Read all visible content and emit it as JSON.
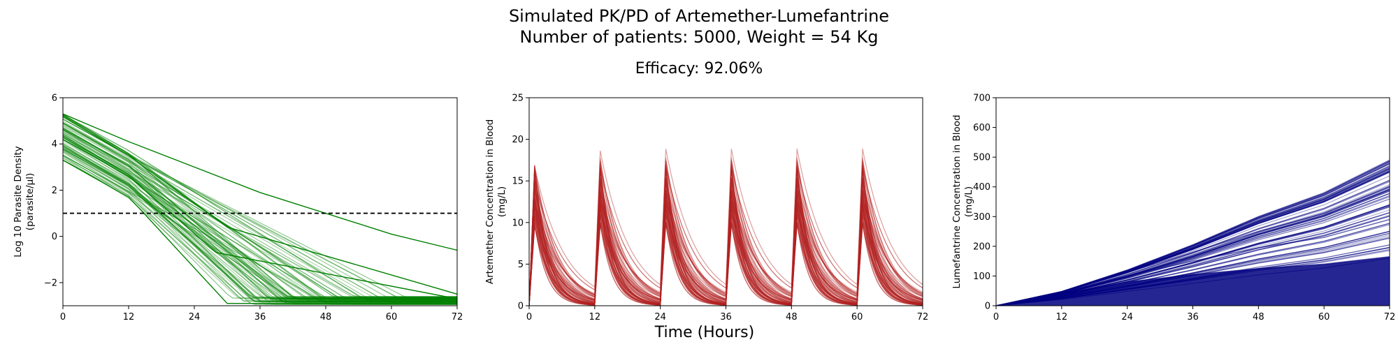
{
  "figure": {
    "title_line1": "Simulated PK/PD of Artemether-Lumefantrine",
    "title_line2": "Number of patients: 5000, Weight = 54 Kg",
    "efficacy_label": "Efficacy: 92.06%",
    "xlabel": "Time (Hours)"
  },
  "chart_data": [
    {
      "type": "line",
      "ylabel_line1": "Log 10 Parasite Density",
      "ylabel_line2": "(parasite/µl)",
      "xlim": [
        0,
        72
      ],
      "ylim": [
        -3,
        6
      ],
      "xticks": [
        0,
        12,
        24,
        36,
        48,
        60,
        72
      ],
      "yticks": [
        -2,
        0,
        2,
        4,
        6
      ],
      "color": "#008000",
      "threshold": 1,
      "series": [
        {
          "x": [
            0,
            12,
            14,
            30,
            72
          ],
          "values": [
            3.3,
            1.7,
            1.2,
            -2.9,
            -2.9
          ]
        },
        {
          "x": [
            0,
            12,
            28,
            72
          ],
          "values": [
            4.2,
            2.6,
            -0.7,
            -2.7
          ]
        },
        {
          "x": [
            0,
            12,
            30,
            72
          ],
          "values": [
            5.2,
            3.5,
            0.4,
            -2.5
          ]
        },
        {
          "x": [
            0,
            12,
            36,
            60,
            72
          ],
          "values": [
            5.3,
            4.1,
            1.9,
            0.1,
            -0.6
          ]
        }
      ]
    },
    {
      "type": "line",
      "ylabel_line1": "Artemether Concentration in Blood",
      "ylabel_line2": "(mg/L)",
      "xlim": [
        0,
        72
      ],
      "ylim": [
        0,
        25
      ],
      "xticks": [
        0,
        12,
        24,
        36,
        48,
        60,
        72
      ],
      "yticks": [
        0,
        5,
        10,
        15,
        20,
        25
      ],
      "color": "#b22222",
      "dose_times": [
        0,
        12,
        24,
        36,
        48,
        60
      ],
      "peak": 17.2,
      "peak_delay_hours": 1
    },
    {
      "type": "line",
      "ylabel_line1": "Lumefantrine Concentration in Blood",
      "ylabel_line2": "(mg/L)",
      "xlim": [
        0,
        72
      ],
      "ylim": [
        0,
        700
      ],
      "xticks": [
        0,
        12,
        24,
        36,
        48,
        60,
        72
      ],
      "yticks": [
        0,
        100,
        200,
        300,
        400,
        500,
        600,
        700
      ],
      "color": "#000080",
      "series": [
        {
          "x": [
            0,
            12,
            24,
            36,
            48,
            60,
            72
          ],
          "values": [
            0,
            48,
            120,
            205,
            300,
            380,
            490
          ]
        },
        {
          "x": [
            0,
            12,
            24,
            36,
            48,
            60,
            72
          ],
          "values": [
            0,
            46,
            112,
            180,
            250,
            310,
            400
          ]
        },
        {
          "x": [
            0,
            12,
            24,
            36,
            48,
            60,
            72
          ],
          "values": [
            0,
            44,
            100,
            150,
            195,
            230,
            290
          ]
        },
        {
          "x": [
            0,
            12,
            24,
            36,
            48,
            60,
            72
          ],
          "values": [
            0,
            40,
            80,
            105,
            125,
            140,
            165
          ]
        }
      ]
    }
  ]
}
